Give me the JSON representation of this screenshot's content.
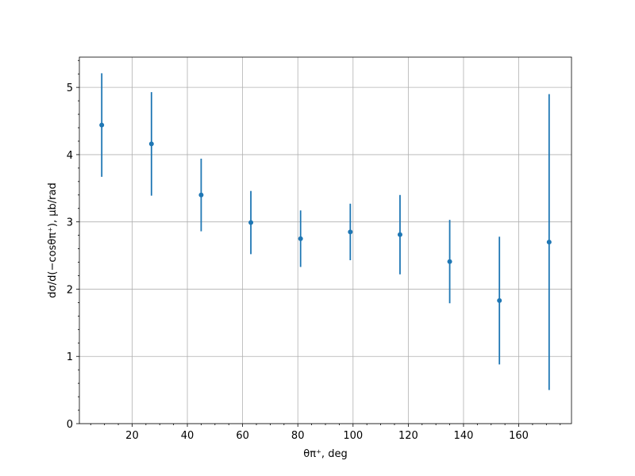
{
  "chart_data": {
    "type": "errorbar",
    "xlabel": "θπ⁺, deg",
    "ylabel": "dσ/d(−cosθπ⁺), μb/rad",
    "x": [
      9,
      27,
      45,
      63,
      81,
      99,
      117,
      135,
      153,
      171
    ],
    "series": [
      {
        "color": "#1f77b4",
        "values": [
          4.44,
          4.16,
          3.4,
          2.99,
          2.75,
          2.85,
          2.81,
          2.41,
          1.83,
          2.7
        ],
        "errors": [
          0.77,
          0.77,
          0.54,
          0.47,
          0.42,
          0.42,
          0.59,
          0.62,
          0.95,
          2.2
        ]
      }
    ],
    "xlim": [
      0.9,
      179.1
    ],
    "ylim": [
      0,
      5.45
    ],
    "xticks": [
      20,
      40,
      60,
      80,
      100,
      120,
      140,
      160
    ],
    "yticks": [
      0,
      1,
      2,
      3,
      4,
      5
    ],
    "xminorticks": [
      5,
      10,
      15,
      25,
      30,
      35,
      45,
      50,
      55,
      65,
      70,
      75,
      85,
      90,
      95,
      105,
      110,
      115,
      125,
      130,
      135,
      145,
      150,
      155,
      165,
      170,
      175
    ],
    "yminorticks": [
      0.2,
      0.4,
      0.6,
      0.8,
      1.2,
      1.4,
      1.6,
      1.8,
      2.2,
      2.4,
      2.6,
      2.8,
      3.2,
      3.4,
      3.6,
      3.8,
      4.2,
      4.4,
      4.6,
      4.8,
      5.2,
      5.4
    ],
    "grid": true
  }
}
